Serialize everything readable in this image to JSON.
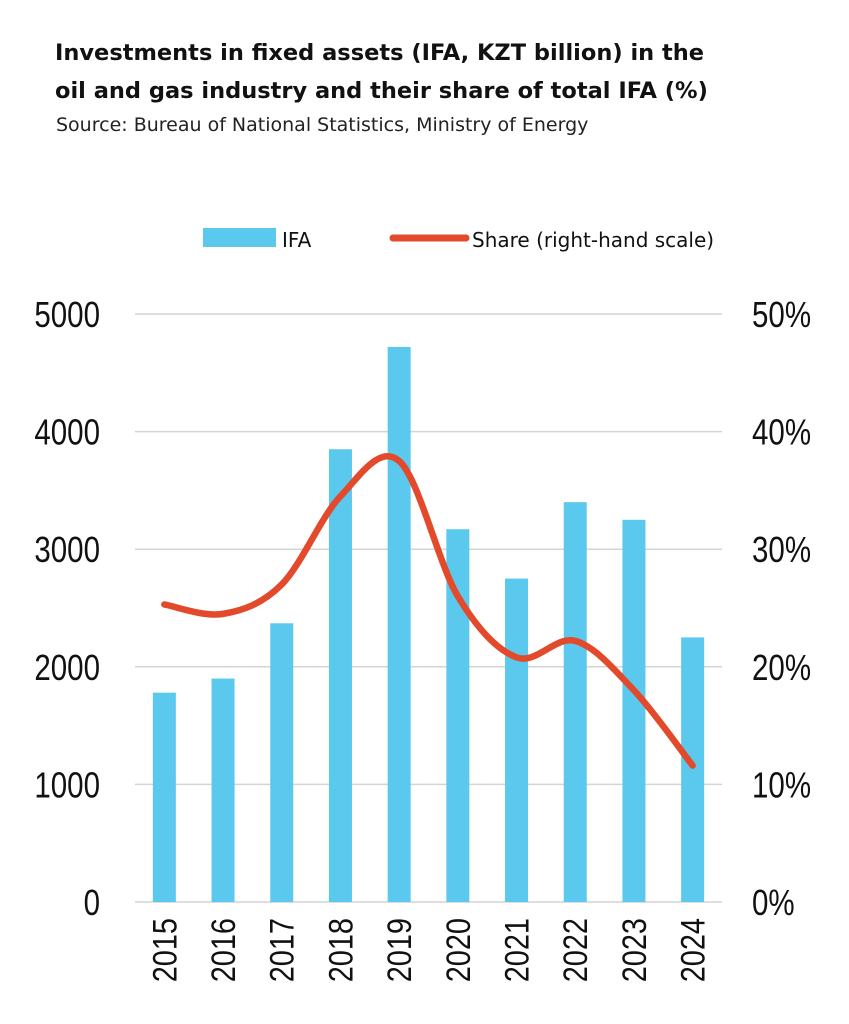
{
  "title_lines": [
    "Investments in fixed assets (IFA, KZT billion) in the",
    "oil and gas industry and their share of total IFA (%)"
  ],
  "subtitle": "Source: Bureau of National Statistics, Ministry of Energy",
  "colors": {
    "bar": "#5bc8ee",
    "line": "#e24a2b",
    "grid": "#d4d4d4",
    "text": "#111111"
  },
  "chart_data": {
    "type": "bar",
    "categories": [
      "2015",
      "2016",
      "2017",
      "2018",
      "2019",
      "2020",
      "2021",
      "2022",
      "2023",
      "2024"
    ],
    "series": [
      {
        "name": "IFA",
        "type": "bar",
        "axis": "left",
        "values": [
          1780,
          1900,
          2370,
          3850,
          4720,
          3170,
          2750,
          3400,
          3250,
          2250
        ]
      },
      {
        "name": "Share (right-hand scale)",
        "type": "line",
        "axis": "right",
        "smooth": true,
        "values": [
          25.3,
          24.5,
          27.0,
          34.5,
          37.5,
          26.0,
          20.8,
          22.2,
          18.0,
          11.6
        ]
      }
    ],
    "y_left": {
      "min": 0,
      "max": 5000,
      "ticks": [
        "0",
        "1000",
        "2000",
        "3000",
        "4000",
        "5000"
      ]
    },
    "y_right": {
      "min": 0,
      "max": 50,
      "ticks": [
        "0%",
        "10%",
        "20%",
        "30%",
        "40%",
        "50%"
      ]
    },
    "grid": true,
    "legend_position": "top"
  }
}
